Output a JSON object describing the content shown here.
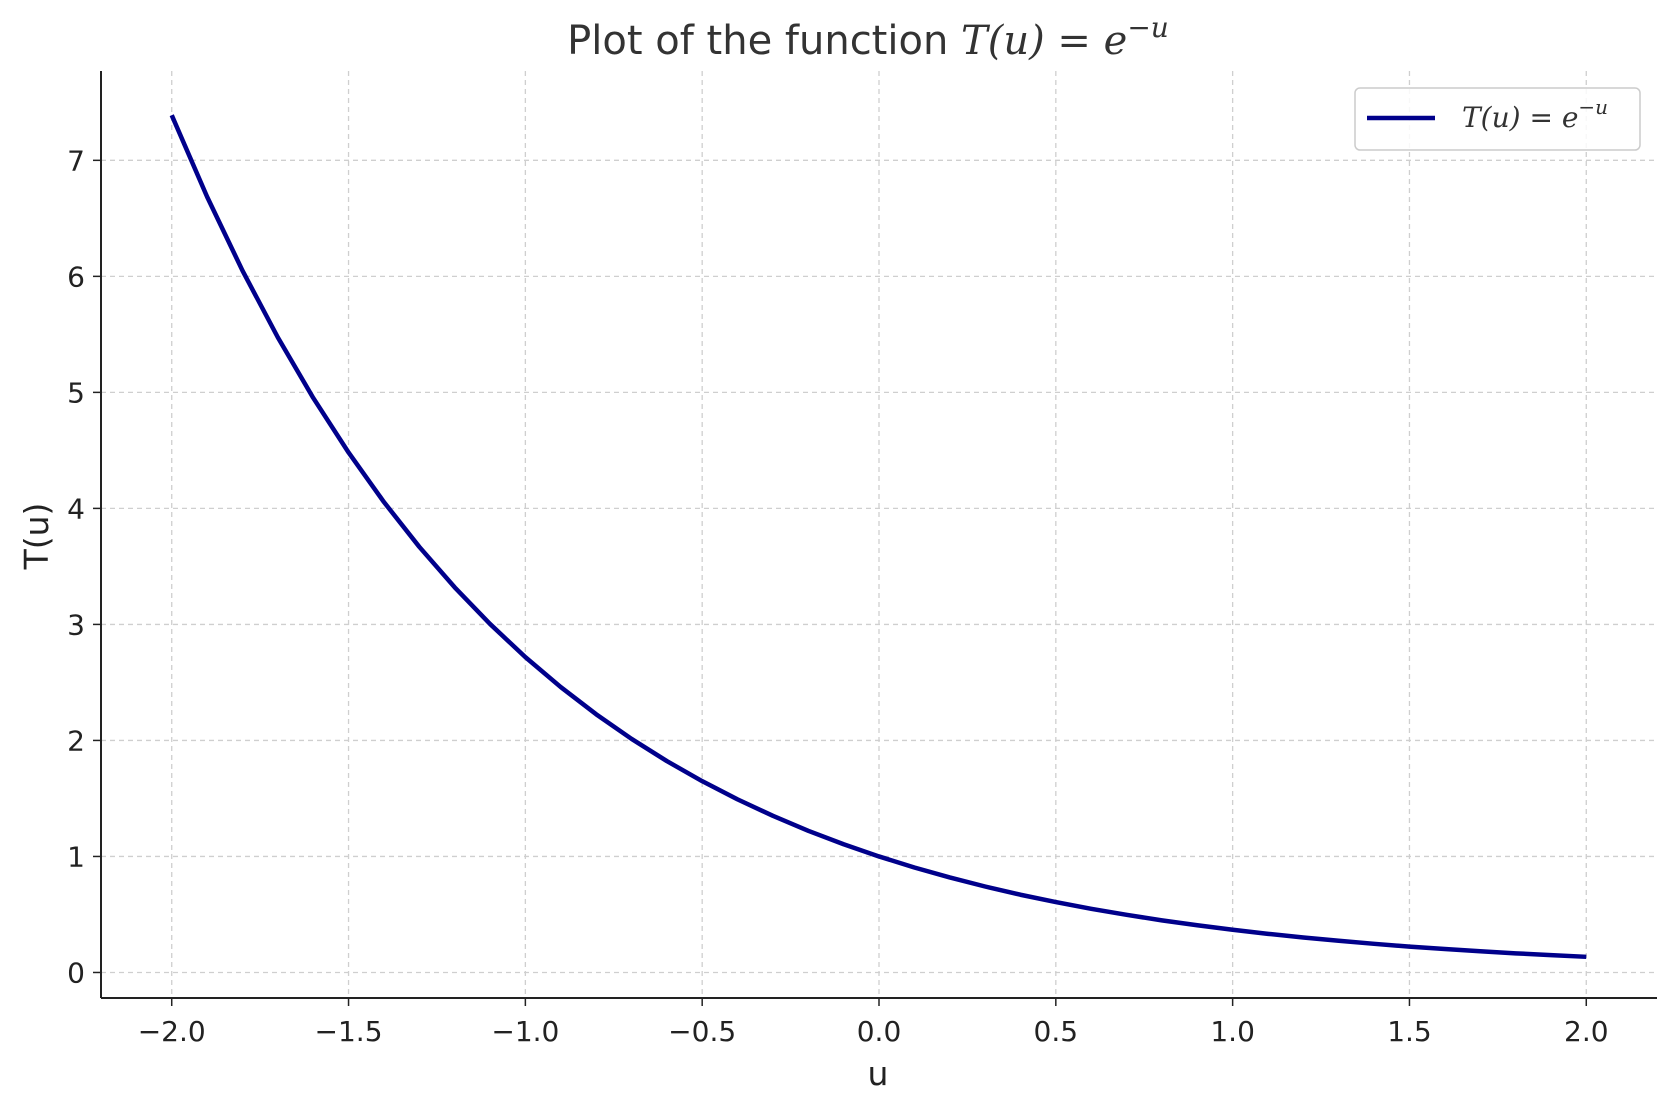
{
  "chart_data": {
    "type": "line",
    "title": {
      "prefix": "Plot of the function ",
      "math_base": "T(u) = e",
      "math_sup": "−u"
    },
    "xlabel": "u",
    "ylabel": "T(u)",
    "xlim": [
      -2.2,
      2.2
    ],
    "ylim": [
      -0.22,
      7.77
    ],
    "x_ticks": [
      -2.0,
      -1.5,
      -1.0,
      -0.5,
      0.0,
      0.5,
      1.0,
      1.5,
      2.0
    ],
    "x_tick_labels": [
      "−2.0",
      "−1.5",
      "−1.0",
      "−0.5",
      "0.0",
      "0.5",
      "1.0",
      "1.5",
      "2.0"
    ],
    "y_ticks": [
      0,
      1,
      2,
      3,
      4,
      5,
      6,
      7
    ],
    "y_tick_labels": [
      "0",
      "1",
      "2",
      "3",
      "4",
      "5",
      "6",
      "7"
    ],
    "grid": true,
    "legend_position": "top-right",
    "series": [
      {
        "name": "T(u) = e",
        "name_sup": "−u",
        "color": "#00008b",
        "x": [
          -2.0,
          -1.9,
          -1.8,
          -1.7,
          -1.6,
          -1.5,
          -1.4,
          -1.3,
          -1.2,
          -1.1,
          -1.0,
          -0.9,
          -0.8,
          -0.7,
          -0.6,
          -0.5,
          -0.4,
          -0.3,
          -0.2,
          -0.1,
          0.0,
          0.1,
          0.2,
          0.3,
          0.4,
          0.5,
          0.6,
          0.7,
          0.8,
          0.9,
          1.0,
          1.1,
          1.2,
          1.3,
          1.4,
          1.5,
          1.6,
          1.7,
          1.8,
          1.9,
          2.0
        ],
        "y": [
          7.389,
          6.686,
          6.05,
          5.474,
          4.953,
          4.482,
          4.055,
          3.669,
          3.32,
          3.004,
          2.718,
          2.46,
          2.226,
          2.014,
          1.822,
          1.649,
          1.492,
          1.35,
          1.221,
          1.105,
          1.0,
          0.905,
          0.819,
          0.741,
          0.67,
          0.607,
          0.549,
          0.497,
          0.449,
          0.407,
          0.368,
          0.333,
          0.301,
          0.273,
          0.247,
          0.223,
          0.202,
          0.183,
          0.165,
          0.15,
          0.135
        ]
      }
    ]
  }
}
